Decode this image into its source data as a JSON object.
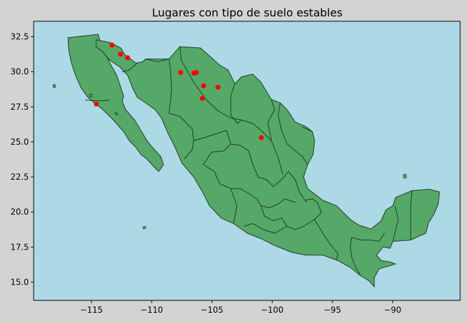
{
  "chart_data": {
    "type": "scatter",
    "title": "Lugares con tipo de suelo estables",
    "xlabel": "",
    "ylabel": "",
    "xlim": [
      -119.8,
      -84.4
    ],
    "ylim": [
      13.7,
      33.6
    ],
    "xticks": [
      -115,
      -110,
      -105,
      -100,
      -95,
      -90
    ],
    "xtick_labels": [
      "−115",
      "−110",
      "−105",
      "−100",
      "−95",
      "−90"
    ],
    "yticks": [
      15.0,
      17.5,
      20.0,
      22.5,
      25.0,
      27.5,
      30.0,
      32.5
    ],
    "ytick_labels": [
      "15.0",
      "17.5",
      "20.0",
      "22.5",
      "25.0",
      "27.5",
      "30.0",
      "32.5"
    ],
    "grid": false,
    "background_color": "#add8e6",
    "land_color": "#55a868",
    "border_color": "#1f3d24",
    "point_color": "#ff0000",
    "points": [
      {
        "x": -113.3,
        "y": 31.9
      },
      {
        "x": -112.6,
        "y": 31.25
      },
      {
        "x": -112.0,
        "y": 31.0
      },
      {
        "x": -114.6,
        "y": 27.7
      },
      {
        "x": -107.6,
        "y": 29.95
      },
      {
        "x": -106.5,
        "y": 29.9
      },
      {
        "x": -106.3,
        "y": 29.95
      },
      {
        "x": -105.7,
        "y": 29.0
      },
      {
        "x": -104.5,
        "y": 28.9
      },
      {
        "x": -105.8,
        "y": 28.1
      },
      {
        "x": -100.9,
        "y": 25.3
      }
    ]
  }
}
